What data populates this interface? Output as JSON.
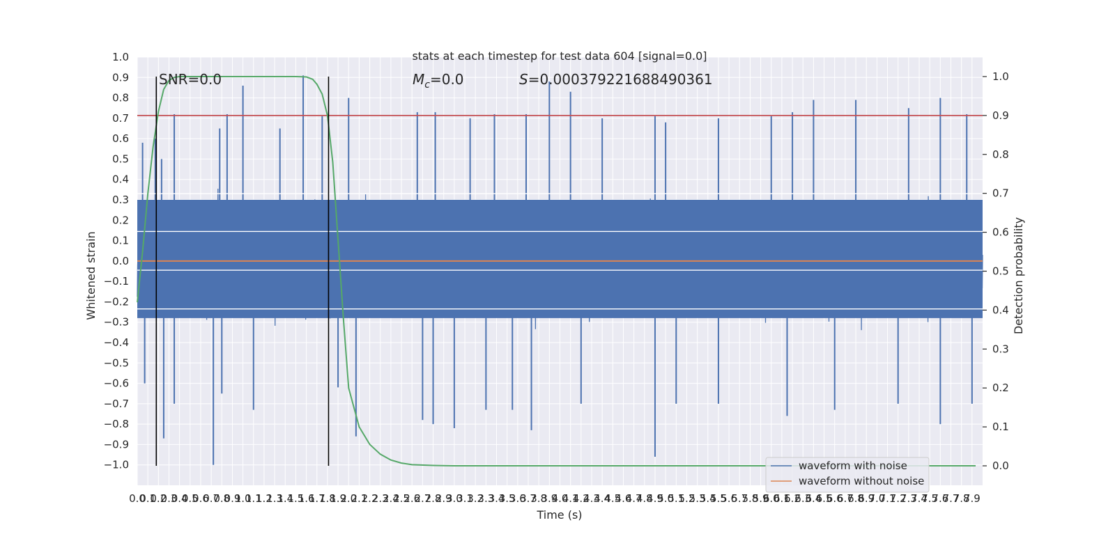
{
  "chart_data": {
    "type": "line",
    "title": "stats at each timestep for test data 604 [signal=0.0]",
    "xlabel": "Time (s)",
    "ylabel": "Whitened strain",
    "y2label": "Detection probability",
    "xlim": [
      0.0,
      8.0
    ],
    "ylim": [
      -1.1,
      1.0
    ],
    "y2lim": [
      -0.05,
      1.05
    ],
    "x_ticks": [
      0.0,
      0.1,
      0.2,
      0.3,
      0.4,
      0.5,
      0.6,
      0.7,
      0.8,
      0.9,
      1.0,
      1.1,
      1.2,
      1.3,
      1.4,
      1.5,
      1.6,
      1.7,
      1.8,
      1.9,
      2.0,
      2.1,
      2.2,
      2.3,
      2.4,
      2.5,
      2.6,
      2.7,
      2.8,
      2.9,
      3.0,
      3.1,
      3.2,
      3.3,
      3.4,
      3.5,
      3.6,
      3.7,
      3.8,
      3.9,
      4.0,
      4.1,
      4.2,
      4.3,
      4.4,
      4.5,
      4.6,
      4.7,
      4.8,
      4.9,
      5.0,
      5.1,
      5.2,
      5.3,
      5.4,
      5.5,
      5.6,
      5.7,
      5.8,
      5.9,
      6.0,
      6.1,
      6.2,
      6.3,
      6.4,
      6.5,
      6.6,
      6.7,
      6.8,
      6.9,
      7.0,
      7.1,
      7.2,
      7.3,
      7.4,
      7.5,
      7.6,
      7.7,
      7.8,
      7.9
    ],
    "y_ticks": [
      1.0,
      0.9,
      0.8,
      0.7,
      0.6,
      0.5,
      0.4,
      0.3,
      0.2,
      0.1,
      0.0,
      -0.1,
      -0.2,
      -0.3,
      -0.4,
      -0.5,
      -0.6,
      -0.7,
      -0.8,
      -0.9,
      -1.0
    ],
    "y_tick_labels": [
      "1.0",
      "0.9",
      "0.8",
      "0.7",
      "0.6",
      "0.5",
      "0.4",
      "0.3",
      "0.2",
      "0.1",
      "0.0",
      "−0.1",
      "−0.2",
      "−0.3",
      "−0.4",
      "−0.5",
      "−0.6",
      "−0.7",
      "−0.8",
      "−0.9",
      "−1.0"
    ],
    "y2_ticks": [
      1.0,
      0.9,
      0.8,
      0.7,
      0.6,
      0.5,
      0.4,
      0.3,
      0.2,
      0.1,
      0.0
    ],
    "series": [
      {
        "name": "waveform with noise",
        "color": "#4c72b0",
        "style": "dense noisy waveform, amplitude about ±0.9",
        "peaks": [
          [
            0.05,
            0.58
          ],
          [
            0.17,
            0.6
          ],
          [
            0.23,
            0.5
          ],
          [
            0.35,
            0.72
          ],
          [
            0.78,
            0.65
          ],
          [
            0.85,
            0.72
          ],
          [
            1.0,
            0.86
          ],
          [
            1.35,
            0.65
          ],
          [
            1.57,
            0.91
          ],
          [
            1.75,
            0.71
          ],
          [
            2.0,
            0.8
          ],
          [
            2.65,
            0.73
          ],
          [
            2.82,
            0.73
          ],
          [
            3.15,
            0.7
          ],
          [
            3.38,
            0.72
          ],
          [
            3.68,
            0.72
          ],
          [
            3.9,
            0.88
          ],
          [
            4.1,
            0.83
          ],
          [
            4.4,
            0.7
          ],
          [
            4.9,
            0.71
          ],
          [
            5.0,
            0.68
          ],
          [
            5.5,
            0.7
          ],
          [
            6.0,
            0.71
          ],
          [
            6.2,
            0.73
          ],
          [
            6.4,
            0.79
          ],
          [
            6.8,
            0.79
          ],
          [
            7.3,
            0.75
          ],
          [
            7.6,
            0.8
          ],
          [
            7.85,
            0.72
          ]
        ],
        "troughs": [
          [
            0.07,
            -0.6
          ],
          [
            0.25,
            -0.87
          ],
          [
            0.35,
            -0.7
          ],
          [
            0.72,
            -1.0
          ],
          [
            0.8,
            -0.65
          ],
          [
            1.1,
            -0.73
          ],
          [
            1.9,
            -0.62
          ],
          [
            2.07,
            -0.86
          ],
          [
            2.7,
            -0.78
          ],
          [
            2.8,
            -0.8
          ],
          [
            3.0,
            -0.82
          ],
          [
            3.3,
            -0.73
          ],
          [
            3.55,
            -0.73
          ],
          [
            3.73,
            -0.83
          ],
          [
            4.2,
            -0.7
          ],
          [
            4.9,
            -0.96
          ],
          [
            5.1,
            -0.7
          ],
          [
            5.5,
            -0.7
          ],
          [
            6.15,
            -0.76
          ],
          [
            6.6,
            -0.73
          ],
          [
            7.2,
            -0.7
          ],
          [
            7.6,
            -0.8
          ],
          [
            7.9,
            -0.7
          ]
        ]
      },
      {
        "name": "waveform without noise",
        "color": "#dd8452",
        "x": [
          0.0,
          8.0
        ],
        "y": [
          0.0,
          0.0
        ]
      },
      {
        "name": "detection probability",
        "color": "#55a868",
        "axis": "right",
        "x": [
          0.0,
          0.05,
          0.1,
          0.15,
          0.2,
          0.25,
          0.3,
          0.35,
          0.4,
          0.5,
          0.6,
          0.8,
          1.0,
          1.2,
          1.4,
          1.5,
          1.6,
          1.66,
          1.7,
          1.75,
          1.8,
          1.85,
          1.9,
          1.95,
          2.0,
          2.1,
          2.2,
          2.3,
          2.4,
          2.5,
          2.6,
          2.8,
          3.0,
          8.0
        ],
        "y": [
          0.42,
          0.55,
          0.7,
          0.82,
          0.91,
          0.967,
          0.99,
          0.998,
          1.0,
          1.0,
          1.0,
          1.0,
          1.0,
          1.0,
          1.0,
          1.0,
          0.999,
          0.993,
          0.98,
          0.955,
          0.9,
          0.78,
          0.58,
          0.38,
          0.2,
          0.1,
          0.055,
          0.03,
          0.015,
          0.007,
          0.003,
          0.001,
          0.0,
          0.0
        ]
      }
    ],
    "threshold": {
      "axis": "right",
      "value": 0.9,
      "color": "#c44e52"
    },
    "vertical_lines": [
      {
        "x": 0.18,
        "color": "#000000"
      },
      {
        "x": 1.81,
        "color": "#000000"
      }
    ],
    "horizontal_white_lines": [
      0.33,
      0.145,
      -0.045,
      -0.235
    ],
    "annotations": [
      {
        "text": "SNR=0.0"
      },
      {
        "text": "M",
        "sub": "c",
        "suffix": "=0.0"
      },
      {
        "text": "S",
        "suffix": "=0.000379221688490361"
      }
    ],
    "grid": true,
    "legend": {
      "placement": "lower right",
      "entries": [
        {
          "label": "waveform with noise",
          "color": "#4c72b0"
        },
        {
          "label": "waveform without noise",
          "color": "#dd8452"
        }
      ]
    },
    "colors": {
      "plot_bg": "#eaeaf2",
      "grid": "#ffffff",
      "text": "#262626"
    }
  }
}
